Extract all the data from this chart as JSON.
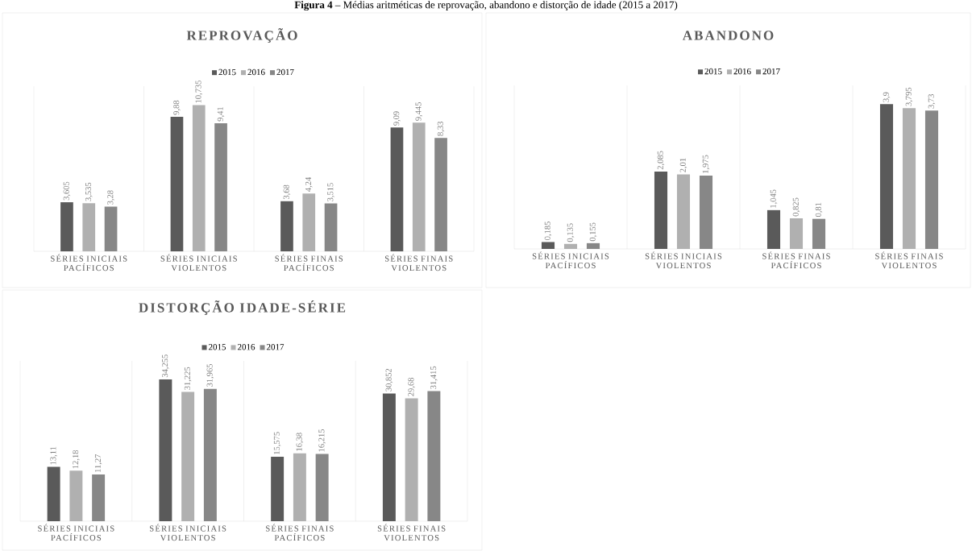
{
  "chart_data": [
    {
      "type": "bar",
      "title": "REPROVAÇÃO",
      "annotations": [
        "**Figura 4** – Médias aritméticas de reprovação, abandono e distorção de idade (2015 a 2017)"
      ],
      "categories": [
        "SÉRIES INICIAIS PACÍFICOS",
        "SÉRIES INICIAIS VIOLENTOS",
        "SÉRIES FINAIS PACÍFICOS",
        "SÉRIES FINAIS VIOLENTOS"
      ],
      "legend": "top",
      "grid": "x",
      "series": [
        {
          "name": "2015",
          "color": "#5a5a5a",
          "values": [
            3.605,
            9.88,
            3.68,
            9.09
          ],
          "value_labels": [
            "3,605",
            "9,88",
            "3,68",
            "9,09"
          ]
        },
        {
          "name": "2016",
          "color": "#b0b0b0",
          "values": [
            3.535,
            10.735,
            4.24,
            9.445
          ],
          "value_labels": [
            "3,535",
            "10,735",
            "4,24",
            "9,445"
          ]
        },
        {
          "name": "2017",
          "color": "#878787",
          "values": [
            3.28,
            9.41,
            3.515,
            8.33
          ],
          "value_labels": [
            "3,28",
            "9,41",
            "3,515",
            "8,33"
          ]
        }
      ]
    },
    {
      "type": "bar",
      "title": "ABANDONO",
      "categories": [
        "SÉRIES INICIAIS PACÍFICOS",
        "SÉRIES INICIAIS VIOLENTOS",
        "SÉRIES FINAIS PACÍFICOS",
        "SÉRIES FINAIS VIOLENTOS"
      ],
      "legend": "top",
      "grid": "x",
      "series": [
        {
          "name": "2015",
          "color": "#5a5a5a",
          "values": [
            0.185,
            2.085,
            1.045,
            3.9
          ],
          "value_labels": [
            "0,185",
            "2,085",
            "1,045",
            "3,9"
          ]
        },
        {
          "name": "2016",
          "color": "#b0b0b0",
          "values": [
            0.135,
            2.01,
            0.825,
            3.795
          ],
          "value_labels": [
            "0,135",
            "2,01",
            "0,825",
            "3,795"
          ]
        },
        {
          "name": "2017",
          "color": "#878787",
          "values": [
            0.155,
            1.975,
            0.81,
            3.73
          ],
          "value_labels": [
            "0,155",
            "1,975",
            "0,81",
            "3,73"
          ]
        }
      ]
    },
    {
      "type": "bar",
      "title": "DISTORÇÃO IDADE-SÉRIE",
      "categories": [
        "SÉRIES INICIAIS PACÍFICOS",
        "SÉRIES INICIAIS VIOLENTOS",
        "SÉRIES FINAIS PACÍFICOS",
        "SÉRIES FINAIS VIOLENTOS"
      ],
      "legend": "top",
      "grid": "x",
      "series": [
        {
          "name": "2015",
          "color": "#5a5a5a",
          "values": [
            13.11,
            34.255,
            15.575,
            30.852
          ],
          "value_labels": [
            "13,11",
            "34,255",
            "15,575",
            "30,852"
          ]
        },
        {
          "name": "2016",
          "color": "#b0b0b0",
          "values": [
            12.18,
            31.225,
            16.38,
            29.68
          ],
          "value_labels": [
            "12,18",
            "31,225",
            "16,38",
            "29,68"
          ]
        },
        {
          "name": "2017",
          "color": "#878787",
          "values": [
            11.27,
            31.965,
            16.215,
            31.415
          ],
          "value_labels": [
            "11,27",
            "31,965",
            "16,215",
            "31,415"
          ]
        }
      ]
    }
  ]
}
